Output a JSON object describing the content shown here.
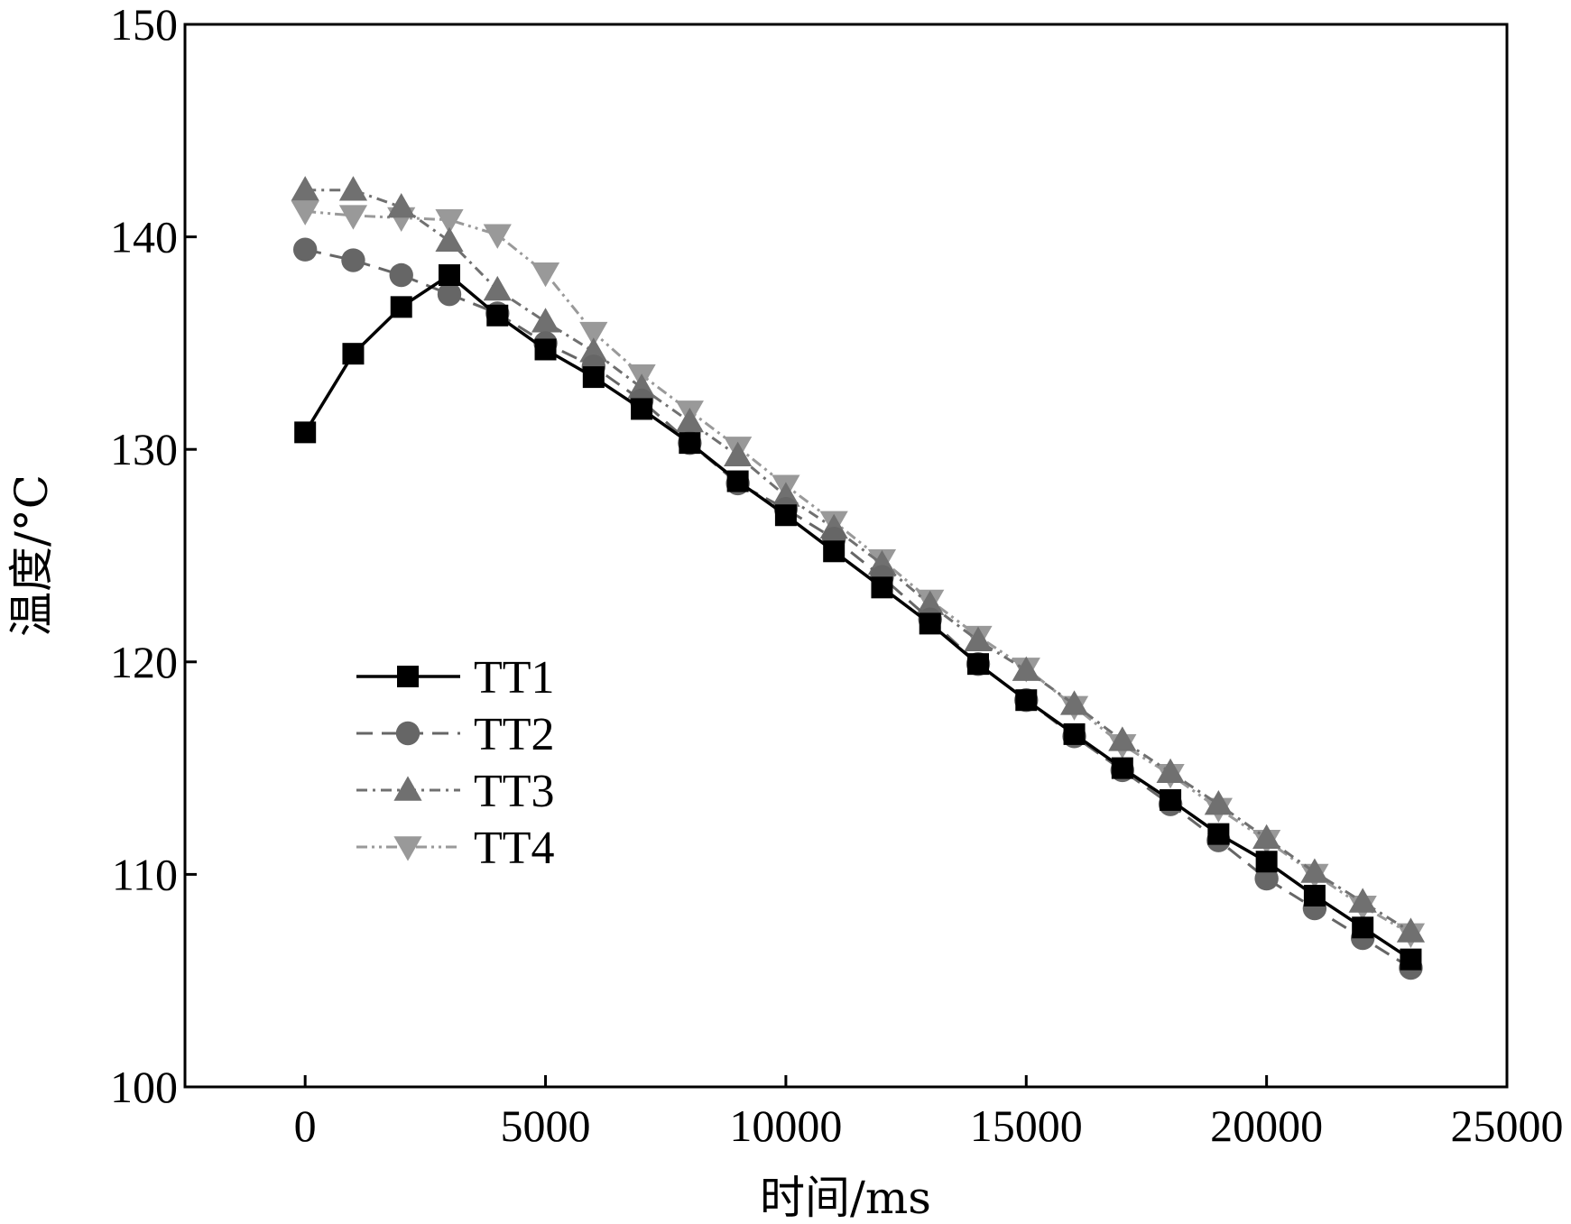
{
  "chart_data": {
    "type": "line",
    "title": "",
    "xlabel": "时间/ms",
    "ylabel": "温度/°C",
    "xlim": [
      -2500,
      25000
    ],
    "ylim": [
      100,
      150
    ],
    "xticks": [
      0,
      5000,
      10000,
      15000,
      20000,
      25000
    ],
    "yticks": [
      100,
      110,
      120,
      130,
      140,
      150
    ],
    "grid": false,
    "legend_position": "center-left",
    "x": [
      0,
      1000,
      2000,
      3000,
      4000,
      5000,
      6000,
      7000,
      8000,
      9000,
      10000,
      11000,
      12000,
      13000,
      14000,
      15000,
      16000,
      17000,
      18000,
      19000,
      20000,
      21000,
      22000,
      23000
    ],
    "series": [
      {
        "name": "TT1",
        "marker": "square",
        "dash": "solid",
        "color": "#000000",
        "values": [
          130.8,
          134.5,
          136.7,
          138.2,
          136.3,
          134.7,
          133.4,
          131.9,
          130.3,
          128.5,
          126.9,
          125.2,
          123.5,
          121.8,
          119.9,
          118.2,
          116.6,
          115.0,
          113.5,
          111.9,
          110.6,
          109.0,
          107.5,
          106.0
        ]
      },
      {
        "name": "TT2",
        "marker": "circle",
        "dash": "dashed",
        "color": "#666666",
        "values": [
          139.4,
          138.9,
          138.2,
          137.3,
          136.4,
          135.0,
          133.9,
          132.3,
          130.3,
          128.4,
          127.2,
          125.8,
          124.0,
          122.0,
          119.9,
          118.2,
          116.5,
          114.9,
          113.3,
          111.6,
          109.8,
          108.4,
          107.0,
          105.6
        ]
      },
      {
        "name": "TT3",
        "marker": "triangle-up",
        "dash": "dashdot",
        "color": "#707070",
        "values": [
          142.2,
          142.2,
          141.4,
          139.8,
          137.5,
          136.0,
          134.6,
          132.9,
          131.3,
          129.7,
          127.8,
          126.3,
          124.6,
          122.7,
          121.0,
          119.6,
          118.0,
          116.3,
          114.8,
          113.3,
          111.7,
          110.1,
          108.7,
          107.3
        ]
      },
      {
        "name": "TT4",
        "marker": "triangle-down",
        "dash": "dashdotdot",
        "color": "#999999",
        "values": [
          141.2,
          141.0,
          140.9,
          140.8,
          140.1,
          138.3,
          135.5,
          133.5,
          131.8,
          130.1,
          128.3,
          126.6,
          124.8,
          122.9,
          121.2,
          119.7,
          117.9,
          116.1,
          114.7,
          113.1,
          111.6,
          110.0,
          108.5,
          107.2
        ]
      }
    ]
  }
}
